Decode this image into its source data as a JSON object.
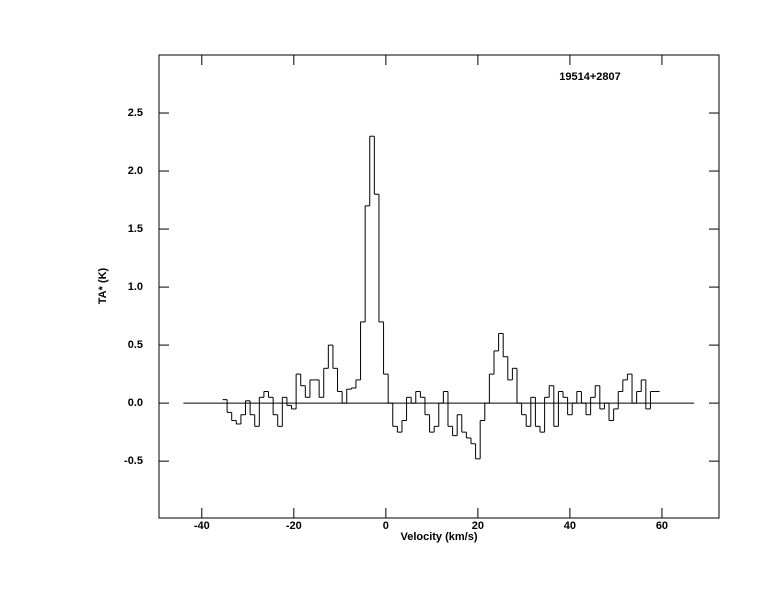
{
  "chart_data": {
    "type": "step",
    "annotation": "19514+2807",
    "xlabel": "Velocity (km/s)",
    "ylabel": "TA* (K)",
    "color": "#000000",
    "xlim": [
      -49.3,
      72.4
    ],
    "ylim": [
      -0.99,
      3.0
    ],
    "xticks": [
      -40,
      -20,
      0,
      20,
      40,
      60
    ],
    "yticks": [
      {
        "value": -0.5,
        "label": "-0.5"
      },
      {
        "value": 0,
        "label": "0.0"
      },
      0.5,
      {
        "value": 1,
        "label": "1.0"
      },
      1.5,
      {
        "value": 2,
        "label": "2.0"
      },
      2.5
    ],
    "zero_line": [
      -44,
      67
    ],
    "x": [
      -35,
      -34,
      -33,
      -32,
      -31,
      -30,
      -29,
      -28,
      -27,
      -26,
      -25,
      -24,
      -23,
      -22,
      -21,
      -20,
      -19,
      -18,
      -17,
      -16,
      -15,
      -14,
      -13,
      -12,
      -11,
      -10,
      -9,
      -8,
      -7,
      -6,
      -5,
      -4,
      -3,
      -2,
      -1,
      0,
      1,
      2,
      3,
      4,
      5,
      6,
      7,
      8,
      9,
      10,
      11,
      12,
      13,
      14,
      15,
      16,
      17,
      18,
      19,
      20,
      21,
      22,
      23,
      24,
      25,
      26,
      27,
      28,
      29,
      30,
      31,
      32,
      33,
      34,
      35,
      36,
      37,
      38,
      39,
      40,
      41,
      42,
      43,
      44,
      45,
      46,
      47,
      48,
      49,
      50,
      51,
      52,
      53,
      54,
      55,
      56,
      57,
      58,
      59
    ],
    "values": [
      0.03,
      -0.08,
      -0.15,
      -0.18,
      -0.1,
      0.02,
      -0.1,
      -0.2,
      0.05,
      0.1,
      0.05,
      -0.1,
      -0.2,
      0.05,
      -0.02,
      -0.05,
      0.25,
      0.15,
      0.05,
      0.2,
      0.2,
      0.05,
      0.3,
      0.5,
      0.3,
      0.1,
      0.0,
      0.12,
      0.13,
      0.2,
      0.7,
      1.7,
      2.3,
      1.8,
      0.7,
      0.25,
      0.0,
      -0.2,
      -0.25,
      -0.15,
      0.05,
      0.0,
      0.1,
      0.05,
      -0.1,
      -0.25,
      -0.2,
      0.0,
      0.1,
      -0.2,
      -0.28,
      -0.1,
      -0.25,
      -0.3,
      -0.35,
      -0.48,
      -0.15,
      0.0,
      0.25,
      0.45,
      0.6,
      0.4,
      0.2,
      0.3,
      0.0,
      -0.1,
      -0.2,
      0.05,
      -0.2,
      -0.25,
      0.05,
      0.15,
      -0.2,
      0.1,
      0.05,
      -0.1,
      0.0,
      0.1,
      0.0,
      -0.1,
      0.05,
      0.15,
      -0.05,
      0.0,
      -0.15,
      -0.05,
      0.1,
      0.2,
      0.25,
      0.0,
      0.1,
      0.2,
      -0.05,
      0.1,
      0.1
    ]
  }
}
